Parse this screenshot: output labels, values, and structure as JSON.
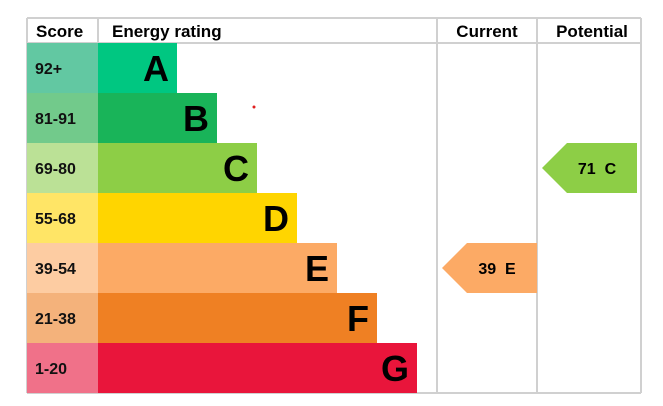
{
  "chart_data": {
    "type": "table",
    "headers": {
      "score": "Score",
      "rating": "Energy rating",
      "current": "Current",
      "potential": "Potential"
    },
    "bands": [
      {
        "score": "92+",
        "letter": "A",
        "color": "#00c781",
        "score_color": "#62c8a2"
      },
      {
        "score": "81-91",
        "letter": "B",
        "color": "#19b459",
        "score_color": "#72ca8b"
      },
      {
        "score": "69-80",
        "letter": "C",
        "color": "#8dce46",
        "score_color": "#bbe196"
      },
      {
        "score": "55-68",
        "letter": "D",
        "color": "#ffd500",
        "score_color": "#ffe566"
      },
      {
        "score": "39-54",
        "letter": "E",
        "color": "#fcaa65",
        "score_color": "#fdcca2"
      },
      {
        "score": "21-38",
        "letter": "F",
        "color": "#ef8023",
        "score_color": "#f4b27b"
      },
      {
        "score": "1-20",
        "letter": "G",
        "color": "#e9153b",
        "score_color": "#f07189"
      }
    ],
    "current": {
      "value": 39,
      "letter": "E",
      "label": "39  E",
      "color": "#fcaa65"
    },
    "potential": {
      "value": 71,
      "letter": "C",
      "label": "71  C",
      "color": "#8dce46"
    }
  }
}
